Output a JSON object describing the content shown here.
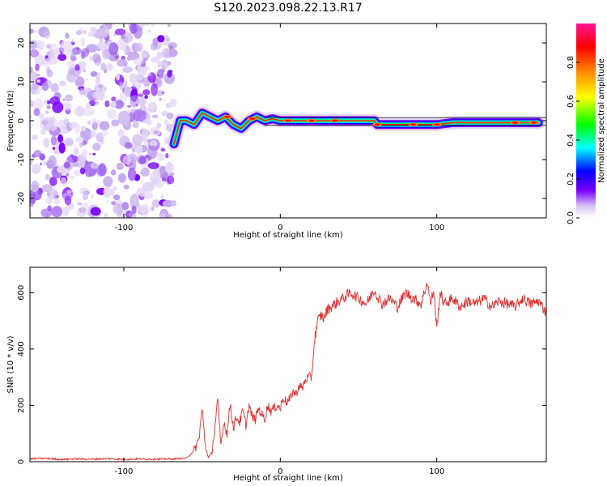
{
  "title": "S120.2023.098.22.13.R17",
  "chart_data": [
    {
      "type": "heatmap",
      "xlabel": "Height of straight line (km)",
      "ylabel": "Frequency (Hz)",
      "xlim": [
        -160,
        170
      ],
      "ylim": [
        -25,
        25
      ],
      "x_ticks": [
        -100,
        0,
        100
      ],
      "x_tick_labels": [
        "-100",
        "0",
        "100"
      ],
      "y_ticks": [
        -20,
        -10,
        0,
        10,
        20
      ],
      "y_tick_labels": [
        "-20",
        "-10",
        "0",
        "10",
        "20"
      ],
      "grid": false,
      "noise_region_x": [
        -160,
        -68
      ],
      "ridge": {
        "x": [
          -68,
          -64,
          -60,
          -55,
          -50,
          -45,
          -40,
          -35,
          -30,
          -25,
          -20,
          -15,
          -10,
          -5,
          0,
          10,
          20,
          30,
          40,
          50,
          60,
          62,
          70,
          80,
          90,
          100,
          110,
          120,
          130,
          140,
          150,
          160,
          165
        ],
        "y": [
          -6,
          0,
          0,
          -1,
          2,
          1,
          0,
          1,
          -1,
          -2,
          0,
          1,
          0,
          0.5,
          0,
          0,
          0,
          0,
          0,
          0,
          0,
          -1,
          -1,
          -1,
          -1,
          -1,
          -0.5,
          -0.5,
          -0.5,
          -0.5,
          -0.5,
          -0.5,
          -0.5
        ]
      },
      "colorbar": {
        "label": "Normalized spectral amplitude",
        "range": [
          0,
          1
        ],
        "ticks": [
          0.0,
          0.2,
          0.4,
          0.6,
          0.8
        ],
        "tick_labels": [
          "0.0",
          "0.2",
          "0.4",
          "0.6",
          "0.8"
        ],
        "colors": [
          "#ffffff",
          "#d8c8f4",
          "#7a00ff",
          "#0000ff",
          "#00ffff",
          "#00ff00",
          "#ffff00",
          "#ff8000",
          "#ff0000",
          "#ff1493"
        ]
      }
    },
    {
      "type": "line",
      "xlabel": "Height of straight line (km)",
      "ylabel": "SNR (10 * v/v)",
      "xlim": [
        -160,
        170
      ],
      "ylim": [
        0,
        690
      ],
      "x_ticks": [
        -100,
        0,
        100
      ],
      "x_tick_labels": [
        "-100",
        "0",
        "100"
      ],
      "y_ticks": [
        0,
        200,
        400,
        600
      ],
      "y_tick_labels": [
        "0",
        "200",
        "400",
        "600"
      ],
      "grid": false,
      "color": "#e03030",
      "series": [
        {
          "x": [
            -160,
            -150,
            -140,
            -130,
            -120,
            -110,
            -100,
            -90,
            -80,
            -70,
            -60,
            -55,
            -52,
            -50,
            -48,
            -46,
            -44,
            -42,
            -40,
            -38,
            -36,
            -34,
            -32,
            -30,
            -28,
            -26,
            -24,
            -22,
            -20,
            -18,
            -16,
            -14,
            -12,
            -10,
            -8,
            -6,
            -4,
            -2,
            0,
            2,
            4,
            6,
            8,
            10,
            12,
            14,
            16,
            18,
            20,
            21,
            22,
            24,
            26,
            28,
            30,
            35,
            40,
            45,
            50,
            55,
            60,
            65,
            70,
            75,
            80,
            85,
            90,
            94,
            96,
            98,
            100,
            102,
            105,
            110,
            115,
            120,
            125,
            130,
            135,
            140,
            145,
            150,
            155,
            160,
            165,
            170
          ],
          "y": [
            10,
            12,
            8,
            10,
            9,
            11,
            8,
            10,
            9,
            10,
            12,
            40,
            80,
            190,
            60,
            15,
            30,
            110,
            220,
            60,
            140,
            100,
            210,
            120,
            160,
            140,
            180,
            130,
            200,
            160,
            150,
            190,
            170,
            150,
            200,
            180,
            190,
            200,
            190,
            230,
            210,
            220,
            250,
            240,
            270,
            260,
            290,
            300,
            300,
            370,
            440,
            500,
            520,
            510,
            540,
            560,
            580,
            600,
            580,
            560,
            610,
            560,
            580,
            550,
            600,
            580,
            560,
            640,
            560,
            610,
            470,
            600,
            560,
            580,
            550,
            570,
            560,
            580,
            550,
            570,
            560,
            550,
            580,
            560,
            570,
            530
          ]
        }
      ]
    }
  ]
}
